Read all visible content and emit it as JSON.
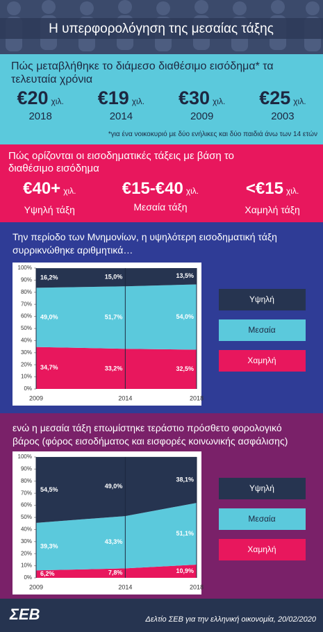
{
  "header": {
    "title": "Η υπερφορολόγηση της μεσαίας τάξης"
  },
  "income": {
    "question": "Πώς μεταβλήθηκε το διάμεσο διαθέσιμο εισόδημα* τα τελευταία χρόνια",
    "items": [
      {
        "amount": "€20",
        "unit": "χιλ.",
        "year": "2018"
      },
      {
        "amount": "€19",
        "unit": "χιλ.",
        "year": "2014"
      },
      {
        "amount": "€30",
        "unit": "χιλ.",
        "year": "2009"
      },
      {
        "amount": "€25",
        "unit": "χιλ.",
        "year": "2003"
      }
    ],
    "note": "*για ένα νοικοκυριό με δύο ενήλικες και δύο παιδιά άνω των 14 ετών"
  },
  "classes": {
    "question": "Πώς ορίζονται οι εισοδηματικές τάξεις με βάση το διαθέσιμο εισόδημα",
    "items": [
      {
        "amount": "€40+",
        "unit": "χιλ.",
        "label": "Υψηλή τάξη"
      },
      {
        "amount": "€15-€40",
        "unit": "χιλ.",
        "label": "Μεσαία τάξη"
      },
      {
        "amount": "<€15",
        "unit": "χιλ.",
        "label": "Χαμηλή τάξη"
      }
    ]
  },
  "chart_data": [
    {
      "type": "area",
      "title": "Την περίοδο των Μνημονίων, η υψηλότερη εισοδηματική τάξη συρρικνώθηκε αριθμητικά…",
      "x": [
        2009,
        2014,
        2018
      ],
      "xlim": [
        2009,
        2018
      ],
      "xticks": [
        2009,
        2014,
        2018
      ],
      "ylim": [
        0,
        100
      ],
      "yticks": [
        {
          "value": 0,
          "label": "0%"
        },
        {
          "value": 10,
          "label": "10%"
        },
        {
          "value": 20,
          "label": "20%"
        },
        {
          "value": 30,
          "label": "30%"
        },
        {
          "value": 40,
          "label": "40%"
        },
        {
          "value": 50,
          "label": "50%"
        },
        {
          "value": 60,
          "label": "60%"
        },
        {
          "value": 70,
          "label": "70%"
        },
        {
          "value": 80,
          "label": "80%"
        },
        {
          "value": 90,
          "label": "90%"
        },
        {
          "value": 100,
          "label": "100%"
        }
      ],
      "stacked": true,
      "legend": "right",
      "series": [
        {
          "name": "Υψηλή",
          "color": "#263450",
          "values": [
            16.2,
            15.0,
            13.5
          ],
          "value_labels": [
            "16,2%",
            "15,0%",
            "13,5%"
          ]
        },
        {
          "name": "Μεσαία",
          "color": "#5bc9dc",
          "values": [
            49.0,
            51.7,
            54.0
          ],
          "value_labels": [
            "49,0%",
            "51,7%",
            "54,0%"
          ]
        },
        {
          "name": "Χαμηλή",
          "color": "#e8175d",
          "values": [
            34.7,
            33.2,
            32.5
          ],
          "value_labels": [
            "34,7%",
            "33,2%",
            "32,5%"
          ]
        }
      ]
    },
    {
      "type": "area",
      "title": "ενώ η μεσαία τάξη επωμίστηκε τεράστιο πρόσθετο φορολογικό βάρος (φόρος εισοδήματος και εισφορές κοινωνικής ασφάλισης)",
      "x": [
        2009,
        2014,
        2018
      ],
      "xlim": [
        2009,
        2018
      ],
      "xticks": [
        2009,
        2014,
        2018
      ],
      "ylim": [
        0,
        100
      ],
      "yticks": [
        {
          "value": 0,
          "label": "0%"
        },
        {
          "value": 10,
          "label": "10%"
        },
        {
          "value": 20,
          "label": "20%"
        },
        {
          "value": 30,
          "label": "30%"
        },
        {
          "value": 40,
          "label": "40%"
        },
        {
          "value": 50,
          "label": "50%"
        },
        {
          "value": 60,
          "label": "60%"
        },
        {
          "value": 70,
          "label": "70%"
        },
        {
          "value": 80,
          "label": "80%"
        },
        {
          "value": 90,
          "label": "90%"
        },
        {
          "value": 100,
          "label": "100%"
        }
      ],
      "stacked": true,
      "legend": "right",
      "series": [
        {
          "name": "Υψηλή",
          "color": "#263450",
          "values": [
            54.5,
            49.0,
            38.1
          ],
          "value_labels": [
            "54,5%",
            "49,0%",
            "38,1%"
          ]
        },
        {
          "name": "Μεσαία",
          "color": "#5bc9dc",
          "values": [
            39.3,
            43.3,
            51.1
          ],
          "value_labels": [
            "39,3%",
            "43,3%",
            "51,1%"
          ]
        },
        {
          "name": "Χαμηλή",
          "color": "#e8175d",
          "values": [
            6.2,
            7.8,
            10.9
          ],
          "value_labels": [
            "6,2%",
            "7,8%",
            "10,9%"
          ]
        }
      ]
    }
  ],
  "footer": {
    "logo": "ΣΕΒ",
    "caption": "Δελτίο ΣΕΒ για την ελληνική οικονομία, 20/02/2020"
  }
}
